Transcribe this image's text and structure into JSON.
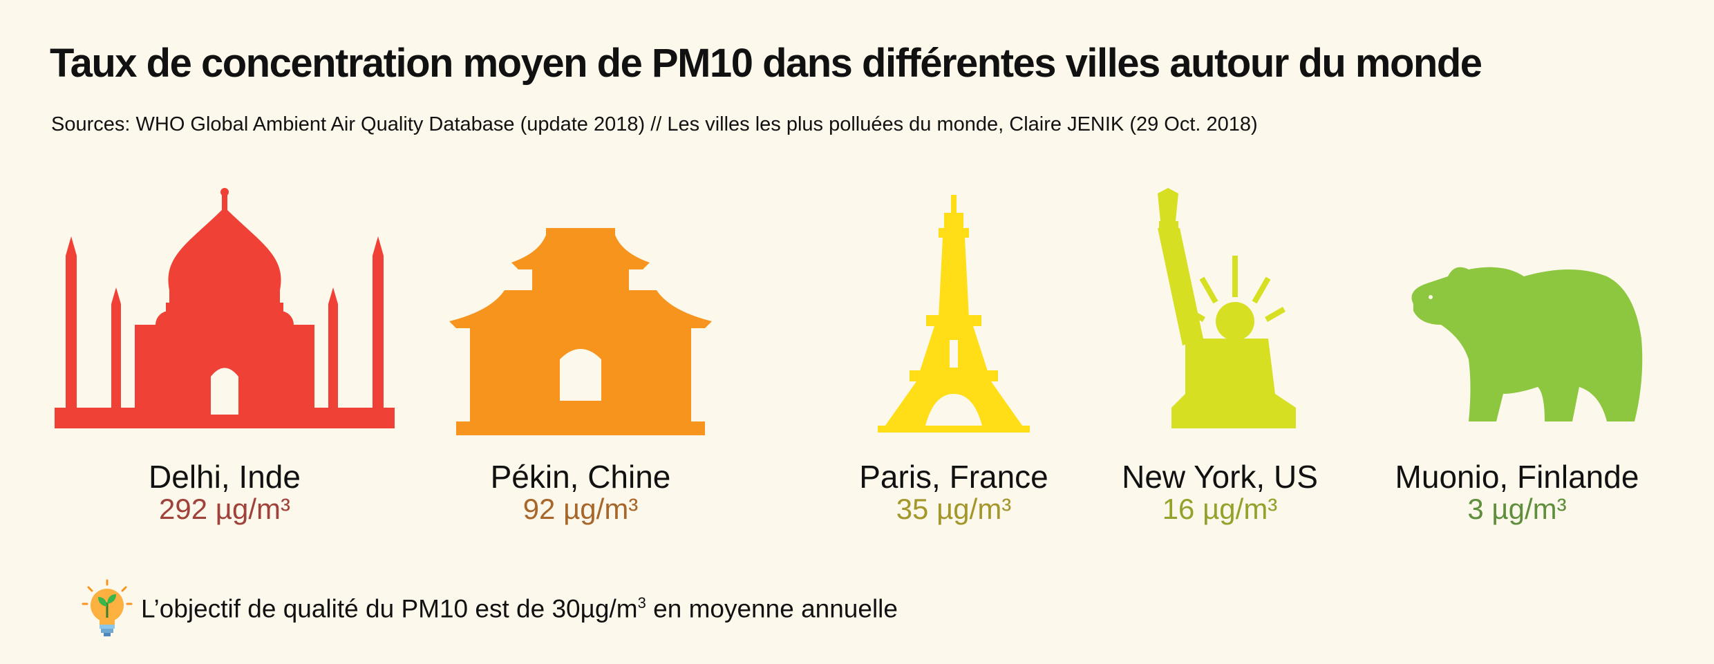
{
  "title": "Taux de concentration moyen de PM10 dans différentes villes autour du monde",
  "sources": "Sources: WHO Global Ambient Air Quality Database (update 2018) // Les villes les plus polluées du monde, Claire JENIK (29 Oct. 2018)",
  "cities": [
    {
      "name": "Delhi, Inde",
      "value": "292 µg/m³",
      "color": "#ef4136",
      "value_color": "#a0413a",
      "icon": "taj-mahal-icon"
    },
    {
      "name": "Pékin, Chine",
      "value": "92 µg/m³",
      "color": "#f7941d",
      "value_color": "#a8672a",
      "icon": "chinese-gate-icon"
    },
    {
      "name": "Paris, France",
      "value": "35 µg/m³",
      "color": "#ffde17",
      "value_color": "#a3962a",
      "icon": "eiffel-tower-icon"
    },
    {
      "name": "New York, US",
      "value": "16 µg/m³",
      "color": "#d7df23",
      "value_color": "#95a12a",
      "icon": "statue-of-liberty-icon"
    },
    {
      "name": "Muonio, Finlande",
      "value": "3 µg/m³",
      "color": "#8dc63f",
      "value_color": "#5f8f3c",
      "icon": "bear-icon"
    }
  ],
  "footer": {
    "text_before": "L’objectif de qualité du PM10 est de 30µg/m",
    "superscript": "3",
    "text_after": " en moyenne annuelle",
    "icon": "lightbulb-icon"
  }
}
